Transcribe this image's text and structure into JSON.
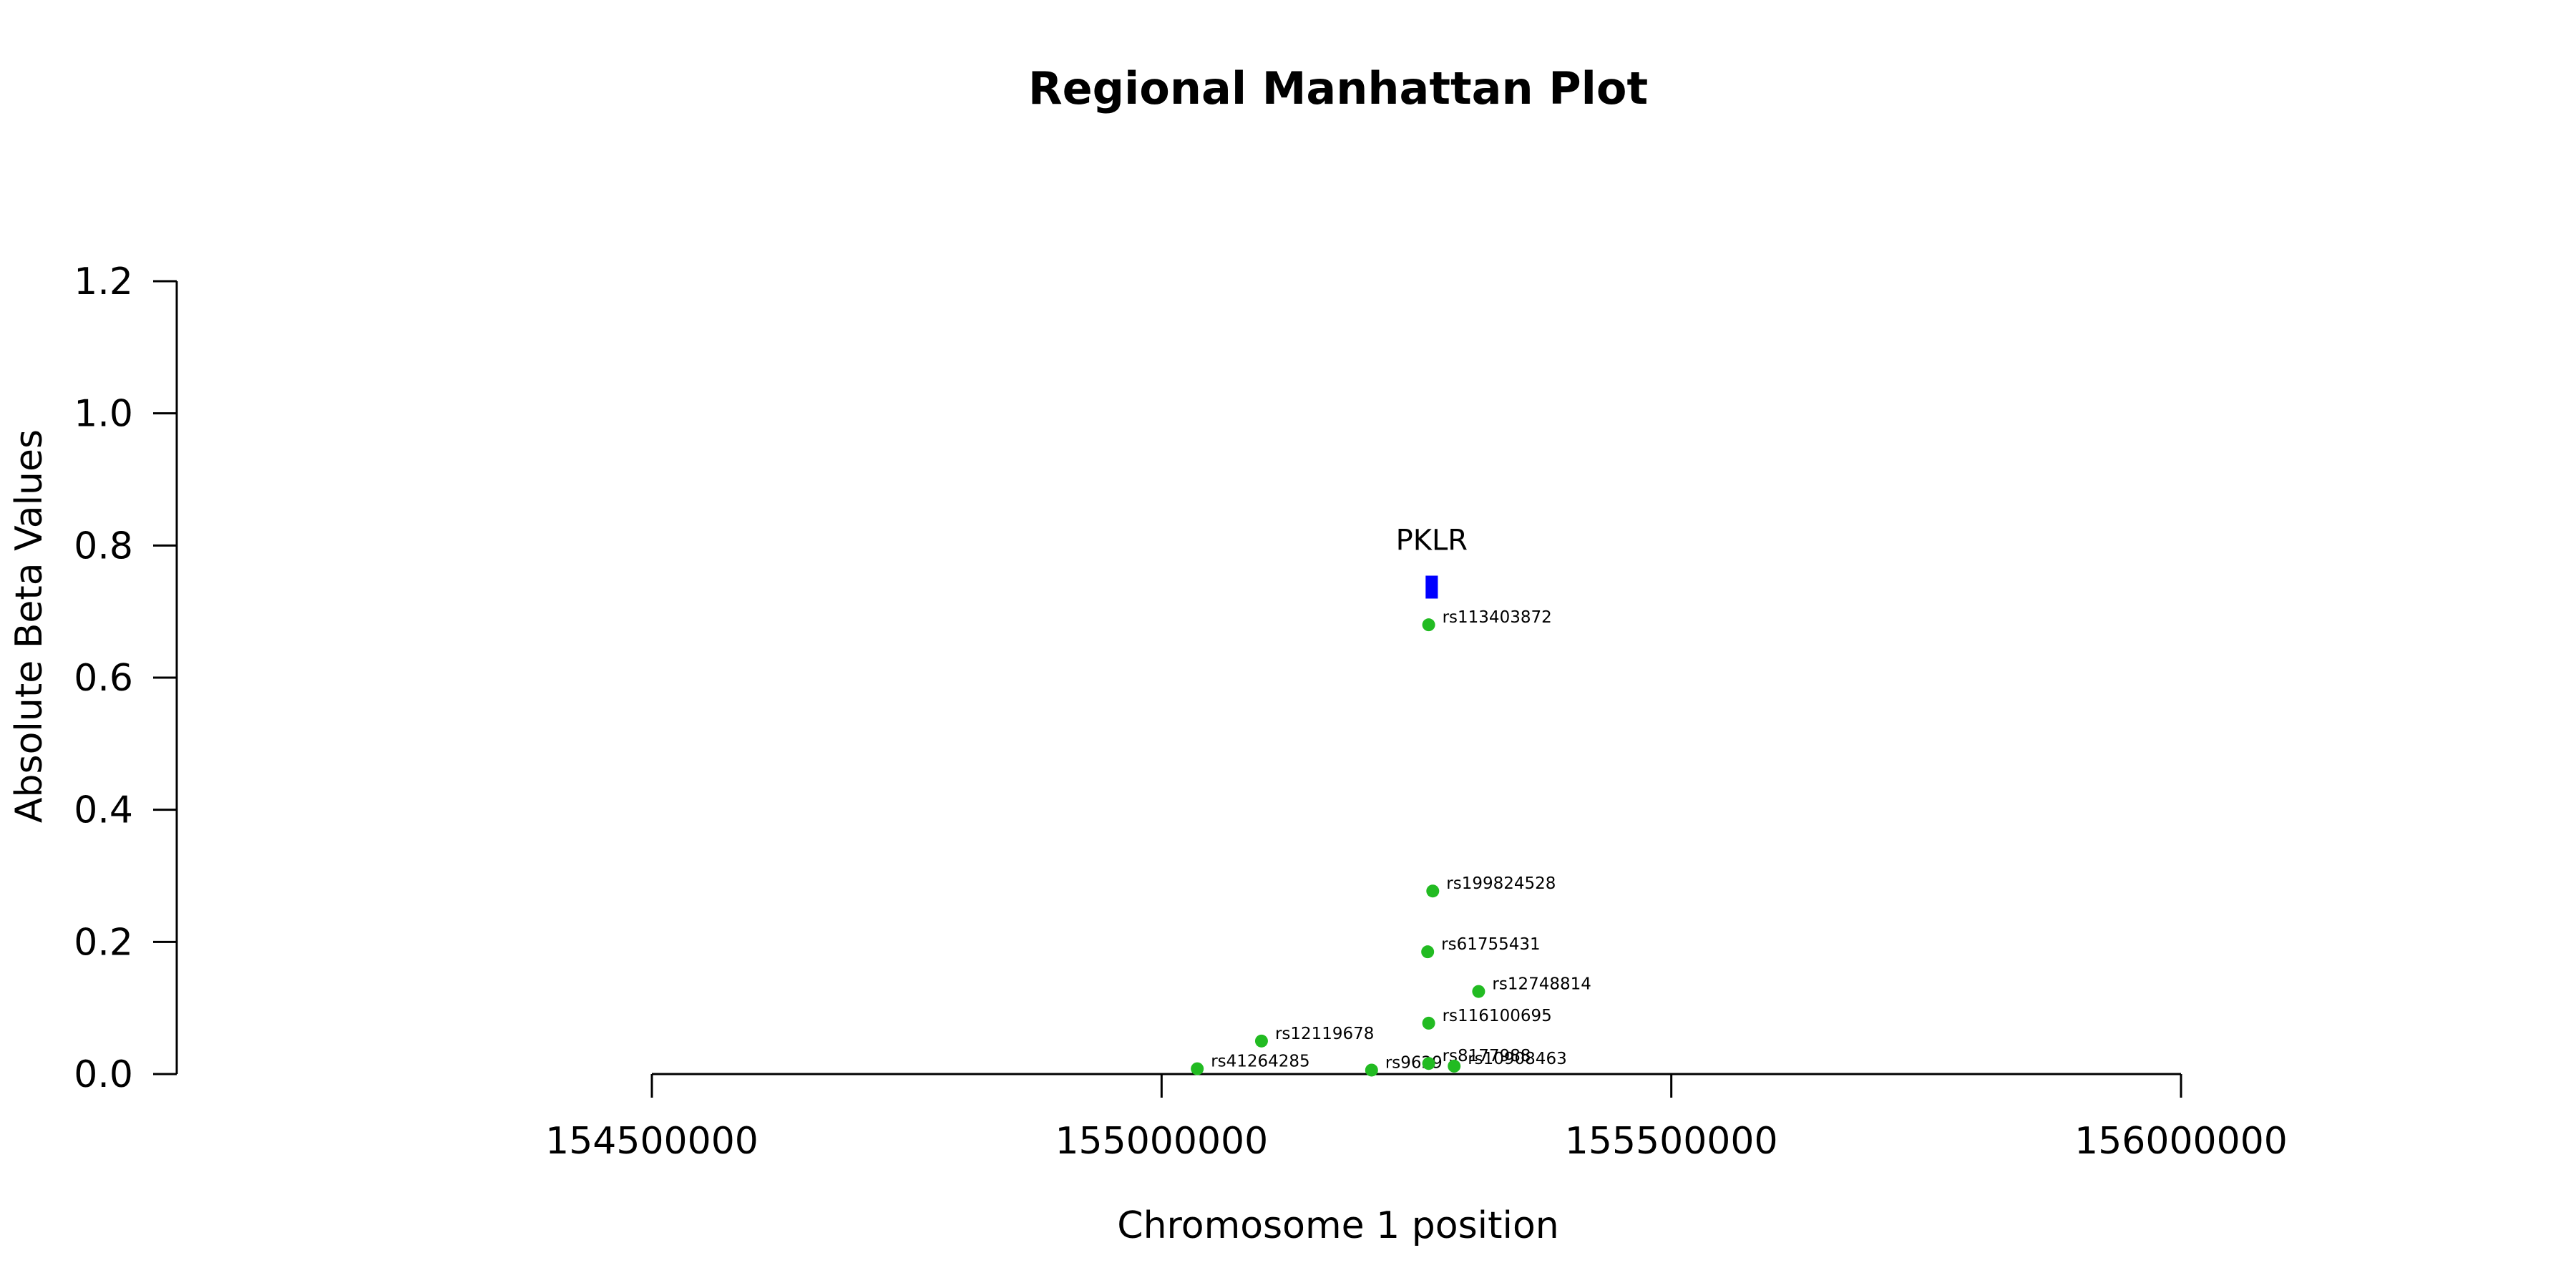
{
  "chart_data": {
    "type": "scatter",
    "title": "Regional Manhattan Plot",
    "xlabel": "Chromosome 1 position",
    "ylabel": "Absolute Beta Values",
    "xlim": [
      154500000,
      156000000
    ],
    "ylim": [
      0,
      1.2
    ],
    "x_ticks": [
      154500000,
      155000000,
      155500000,
      156000000
    ],
    "y_ticks": [
      "0.0",
      "0.2",
      "0.4",
      "0.6",
      "0.8",
      "1.0",
      "1.2"
    ],
    "grid": false,
    "point_color": "#22bb22",
    "gene_color": "#0000ff",
    "points": [
      {
        "snp": "rs113403872",
        "x": 155262000,
        "y": 0.68
      },
      {
        "snp": "rs199824528",
        "x": 155266000,
        "y": 0.277
      },
      {
        "snp": "rs61755431",
        "x": 155261000,
        "y": 0.185
      },
      {
        "snp": "rs12748814",
        "x": 155311000,
        "y": 0.125
      },
      {
        "snp": "rs116100695",
        "x": 155262000,
        "y": 0.077
      },
      {
        "snp": "rs12119678",
        "x": 155098000,
        "y": 0.05
      },
      {
        "snp": "rs41264285",
        "x": 155035000,
        "y": 0.008
      },
      {
        "snp": "rs9629",
        "x": 155206000,
        "y": 0.006
      },
      {
        "snp": "rs8177988",
        "x": 155262000,
        "y": 0.016
      },
      {
        "snp": "rs10908463",
        "x": 155287000,
        "y": 0.012
      }
    ],
    "genes": [
      {
        "name": "PKLR",
        "start": 155259000,
        "end": 155271000,
        "y": 0.737
      }
    ]
  }
}
